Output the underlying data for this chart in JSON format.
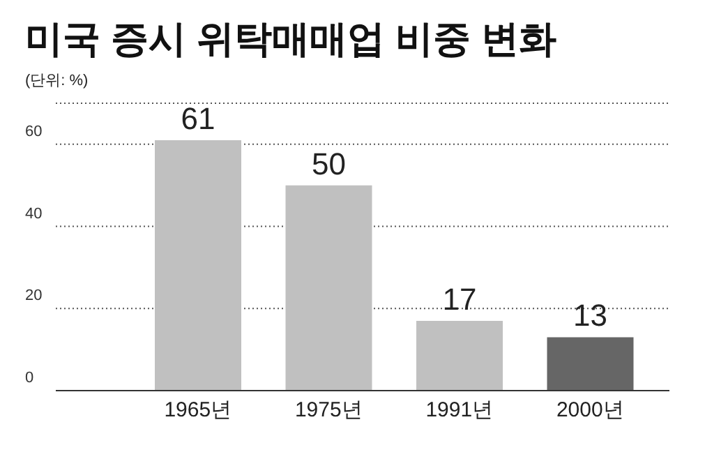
{
  "chart_data": {
    "type": "bar",
    "title": "미국 증시 위탁매매업 비중 변화",
    "subtitle": "(단위: %)",
    "categories": [
      "1965년",
      "1975년",
      "1991년",
      "2000년"
    ],
    "values": [
      61,
      50,
      17,
      13
    ],
    "colors": [
      "#c0c0c0",
      "#c0c0c0",
      "#c0c0c0",
      "#666666"
    ],
    "ylim": [
      0,
      70
    ],
    "yticks": [
      0,
      20,
      40,
      60
    ],
    "grid": "y",
    "data_labels": true
  }
}
